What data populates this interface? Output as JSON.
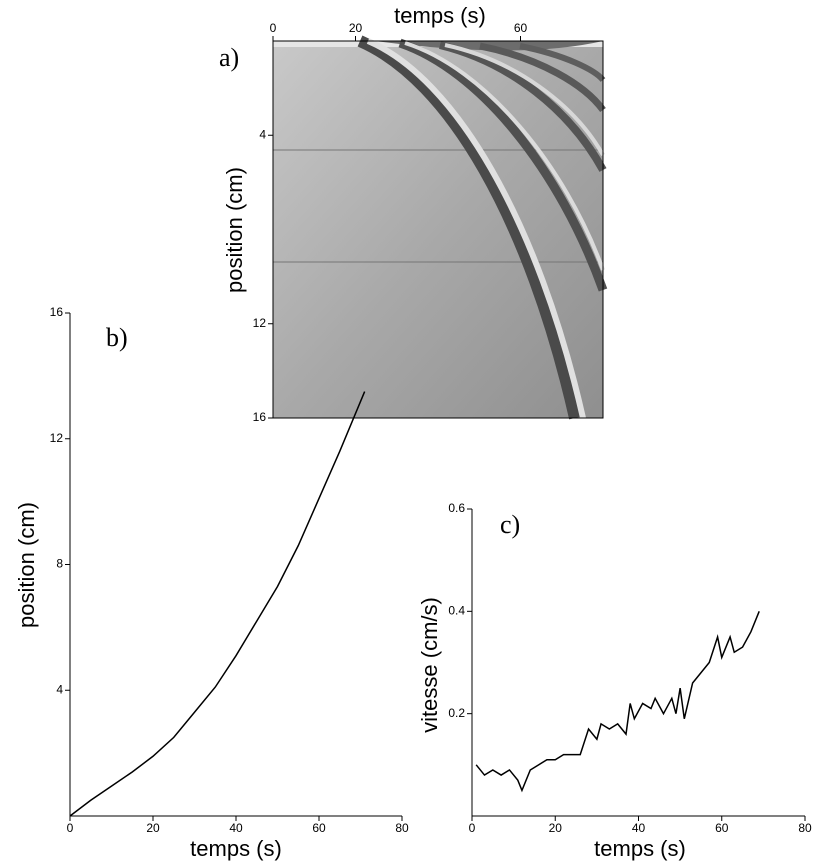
{
  "chart_data": [
    {
      "type": "image",
      "label": "a)",
      "xlabel": "temps (s)",
      "ylabel": "position (cm)",
      "xlim": [
        0,
        80
      ],
      "ylim": [
        0,
        16
      ],
      "xticks": [
        0,
        20,
        60
      ],
      "yticks": [
        4,
        12,
        16
      ],
      "yreverse": true,
      "xaxis_position": "top"
    },
    {
      "type": "line",
      "label": "b)",
      "xlabel": "temps (s)",
      "ylabel": "position (cm)",
      "xlim": [
        0,
        80
      ],
      "ylim": [
        0,
        16
      ],
      "xticks": [
        0,
        20,
        40,
        60,
        80
      ],
      "yticks": [
        4,
        8,
        12,
        16
      ],
      "color": "#000000",
      "x": [
        0,
        5,
        10,
        15,
        20,
        25,
        30,
        35,
        40,
        45,
        50,
        55,
        60,
        65,
        71
      ],
      "values": [
        0,
        0.5,
        0.95,
        1.4,
        1.9,
        2.5,
        3.3,
        4.1,
        5.1,
        6.2,
        7.3,
        8.6,
        10.1,
        11.6,
        13.5
      ]
    },
    {
      "type": "line",
      "label": "c)",
      "xlabel": "temps (s)",
      "ylabel": "vitesse (cm/s)",
      "xlim": [
        0,
        80
      ],
      "ylim": [
        0,
        0.6
      ],
      "xticks": [
        0,
        20,
        40,
        60,
        80
      ],
      "yticks": [
        0.2,
        0.4,
        0.6
      ],
      "color": "#000000",
      "x": [
        1,
        3,
        5,
        7,
        9,
        11,
        12,
        14,
        16,
        18,
        20,
        22,
        24,
        26,
        28,
        30,
        31,
        33,
        35,
        37,
        38,
        39,
        41,
        43,
        44,
        46,
        48,
        49,
        50,
        51,
        53,
        55,
        57,
        59,
        60,
        62,
        63,
        65,
        67,
        69
      ],
      "values": [
        0.1,
        0.08,
        0.09,
        0.08,
        0.09,
        0.07,
        0.05,
        0.09,
        0.1,
        0.11,
        0.11,
        0.12,
        0.12,
        0.12,
        0.17,
        0.15,
        0.18,
        0.17,
        0.18,
        0.16,
        0.22,
        0.19,
        0.22,
        0.21,
        0.23,
        0.2,
        0.23,
        0.2,
        0.25,
        0.19,
        0.26,
        0.28,
        0.3,
        0.35,
        0.31,
        0.35,
        0.32,
        0.33,
        0.36,
        0.4
      ]
    }
  ]
}
